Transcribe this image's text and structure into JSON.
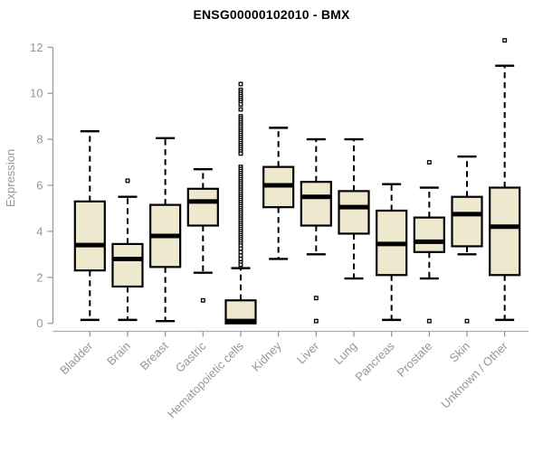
{
  "title": "ENSG00000102010 - BMX",
  "chart_data": {
    "type": "boxplot",
    "title": "ENSG00000102010 - BMX",
    "xlabel": "",
    "ylabel": "Expression",
    "ylim": [
      0,
      12
    ],
    "yticks": [
      0,
      2,
      4,
      6,
      8,
      10,
      12
    ],
    "grid": false,
    "legend": "none",
    "categories": [
      "Bladder",
      "Brain",
      "Breast",
      "Gastric",
      "Hematopoietic cells",
      "Kidney",
      "Liver",
      "Lung",
      "Pancreas",
      "Prostate",
      "Skin",
      "Unknown / Other"
    ],
    "boxes": [
      {
        "label": "Bladder",
        "low": 0.15,
        "q1": 2.3,
        "median": 3.4,
        "q3": 5.3,
        "high": 8.35,
        "outliers": []
      },
      {
        "label": "Brain",
        "low": 0.15,
        "q1": 1.6,
        "median": 2.8,
        "q3": 3.45,
        "high": 5.5,
        "outliers": [
          6.2
        ]
      },
      {
        "label": "Breast",
        "low": 0.1,
        "q1": 2.45,
        "median": 3.8,
        "q3": 5.15,
        "high": 8.05,
        "outliers": []
      },
      {
        "label": "Gastric",
        "low": 2.2,
        "q1": 4.25,
        "median": 5.3,
        "q3": 5.85,
        "high": 6.7,
        "outliers": [
          1.0
        ]
      },
      {
        "label": "Hematopoietic cells",
        "low": 0.0,
        "q1": 0.0,
        "median": 0.1,
        "q3": 1.0,
        "high": 2.4,
        "outliers": [
          10.4,
          10.15,
          10.06,
          9.97,
          9.88,
          9.79,
          9.7,
          9.61,
          9.52,
          9.3,
          9.0,
          8.91,
          8.82,
          8.73,
          8.64,
          8.55,
          8.46,
          8.37,
          8.28,
          8.19,
          8.1,
          8.01,
          7.92,
          7.83,
          7.74,
          7.65,
          7.56,
          7.47,
          7.38,
          6.8,
          6.71,
          6.62,
          6.53,
          6.44,
          6.35,
          6.26,
          6.17,
          6.08,
          5.99,
          5.9,
          5.81,
          5.72,
          5.63,
          5.54,
          5.45,
          5.36,
          5.27,
          5.18,
          5.09,
          5.0,
          4.91,
          4.82,
          4.73,
          4.64,
          4.55,
          4.46,
          4.37,
          4.28,
          4.19,
          4.1,
          4.01,
          3.92,
          3.83,
          3.74,
          3.65,
          3.56,
          3.47,
          3.38,
          3.25,
          3.1,
          2.95,
          2.8,
          2.65,
          2.55
        ]
      },
      {
        "label": "Kidney",
        "low": 2.8,
        "q1": 5.05,
        "median": 6.0,
        "q3": 6.8,
        "high": 8.5,
        "outliers": []
      },
      {
        "label": "Liver",
        "low": 3.0,
        "q1": 4.25,
        "median": 5.5,
        "q3": 6.15,
        "high": 8.0,
        "outliers": [
          1.1,
          0.1
        ]
      },
      {
        "label": "Lung",
        "low": 1.95,
        "q1": 3.9,
        "median": 5.05,
        "q3": 5.75,
        "high": 8.0,
        "outliers": []
      },
      {
        "label": "Pancreas",
        "low": 0.15,
        "q1": 2.1,
        "median": 3.45,
        "q3": 4.9,
        "high": 6.05,
        "outliers": []
      },
      {
        "label": "Prostate",
        "low": 1.95,
        "q1": 3.1,
        "median": 3.55,
        "q3": 4.6,
        "high": 5.9,
        "outliers": [
          7.0,
          0.1
        ]
      },
      {
        "label": "Skin",
        "low": 3.0,
        "q1": 3.35,
        "median": 4.75,
        "q3": 5.5,
        "high": 7.25,
        "outliers": [
          0.1
        ]
      },
      {
        "label": "Unknown / Other",
        "low": 0.15,
        "q1": 2.1,
        "median": 4.2,
        "q3": 5.9,
        "high": 11.2,
        "outliers": [
          12.3
        ]
      }
    ],
    "colors": {
      "box_fill": "#EDE8CE",
      "box_stroke": "#000000",
      "median": "#000000",
      "whisker": "#000000",
      "axis_line": "#9A9A9A",
      "x_axis_line": "#ABABAB",
      "tick_label": "#969696",
      "title": "#000000",
      "background": "#FFFFFF"
    }
  }
}
